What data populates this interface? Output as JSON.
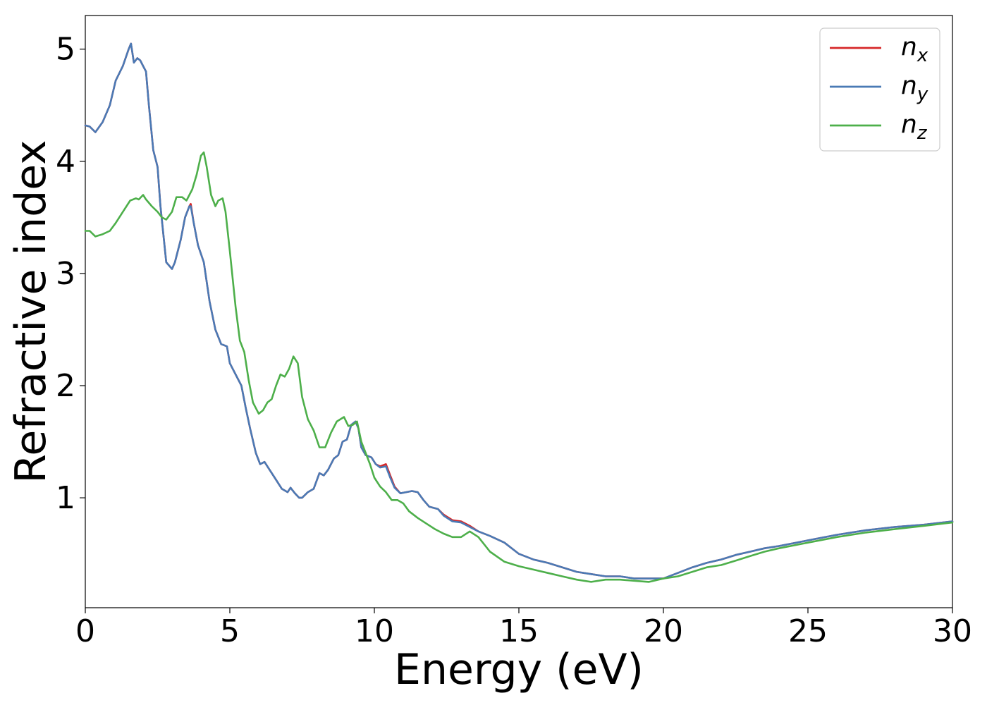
{
  "chart_data": {
    "type": "line",
    "xlabel": "Energy (eV)",
    "ylabel": "Refractive index",
    "xlim": [
      0,
      30
    ],
    "ylim": [
      0.02,
      5.3
    ],
    "xticks": [
      0,
      5,
      10,
      15,
      20,
      25,
      30
    ],
    "yticks": [
      1,
      2,
      3,
      4,
      5
    ],
    "grid": false,
    "legend_position": "top-right",
    "series": [
      {
        "name": "n_x",
        "label_main": "n",
        "label_sub": "x",
        "color": "#d62728",
        "x": [
          0,
          0.15,
          0.35,
          0.6,
          0.85,
          1.05,
          1.3,
          1.5,
          1.58,
          1.68,
          1.8,
          1.9,
          2.0,
          2.1,
          2.2,
          2.35,
          2.5,
          2.6,
          2.8,
          3.0,
          3.1,
          3.3,
          3.45,
          3.6,
          3.65,
          3.75,
          3.9,
          4.1,
          4.3,
          4.5,
          4.7,
          4.9,
          5.0,
          5.2,
          5.4,
          5.55,
          5.7,
          5.9,
          6.05,
          6.2,
          6.35,
          6.55,
          6.8,
          7.0,
          7.1,
          7.25,
          7.4,
          7.5,
          7.7,
          7.9,
          8.1,
          8.25,
          8.4,
          8.6,
          8.75,
          8.9,
          9.05,
          9.2,
          9.35,
          9.45,
          9.55,
          9.7,
          9.9,
          10.05,
          10.2,
          10.4,
          10.55,
          10.7,
          10.9,
          11.1,
          11.3,
          11.5,
          11.7,
          11.9,
          12.2,
          12.4,
          12.7,
          13.0,
          13.3,
          13.6,
          14.0,
          14.5,
          15.0,
          15.5,
          16.0,
          16.5,
          17.0,
          17.5,
          18.0,
          18.5,
          19.0,
          19.5,
          20.0,
          20.5,
          21.0,
          21.5,
          22.0,
          22.5,
          23.0,
          23.5,
          24.0,
          25.0,
          26.0,
          27.0,
          28.0,
          29.0,
          30.0
        ],
        "values": [
          4.32,
          4.31,
          4.26,
          4.35,
          4.5,
          4.72,
          4.85,
          5.0,
          5.05,
          4.88,
          4.92,
          4.9,
          4.85,
          4.8,
          4.5,
          4.1,
          3.95,
          3.6,
          3.1,
          3.04,
          3.1,
          3.3,
          3.5,
          3.6,
          3.62,
          3.45,
          3.25,
          3.1,
          2.75,
          2.5,
          2.37,
          2.35,
          2.2,
          2.1,
          2.0,
          1.8,
          1.62,
          1.4,
          1.3,
          1.32,
          1.26,
          1.18,
          1.08,
          1.05,
          1.09,
          1.04,
          1.0,
          1.0,
          1.05,
          1.08,
          1.22,
          1.2,
          1.25,
          1.35,
          1.38,
          1.5,
          1.52,
          1.65,
          1.68,
          1.62,
          1.45,
          1.38,
          1.36,
          1.3,
          1.28,
          1.3,
          1.2,
          1.1,
          1.04,
          1.05,
          1.06,
          1.05,
          0.98,
          0.92,
          0.9,
          0.85,
          0.8,
          0.79,
          0.75,
          0.7,
          0.66,
          0.6,
          0.5,
          0.45,
          0.42,
          0.38,
          0.34,
          0.32,
          0.3,
          0.3,
          0.28,
          0.28,
          0.28,
          0.33,
          0.38,
          0.42,
          0.45,
          0.49,
          0.52,
          0.55,
          0.57,
          0.62,
          0.67,
          0.71,
          0.74,
          0.76,
          0.79
        ]
      },
      {
        "name": "n_y",
        "label_main": "n",
        "label_sub": "y",
        "color": "#4a7ab5",
        "x": [
          0,
          0.15,
          0.35,
          0.6,
          0.85,
          1.05,
          1.3,
          1.5,
          1.58,
          1.68,
          1.8,
          1.9,
          2.0,
          2.1,
          2.2,
          2.35,
          2.5,
          2.6,
          2.8,
          3.0,
          3.1,
          3.3,
          3.45,
          3.6,
          3.65,
          3.75,
          3.9,
          4.1,
          4.3,
          4.5,
          4.7,
          4.9,
          5.0,
          5.2,
          5.4,
          5.55,
          5.7,
          5.9,
          6.05,
          6.2,
          6.35,
          6.55,
          6.8,
          7.0,
          7.1,
          7.25,
          7.4,
          7.5,
          7.7,
          7.9,
          8.1,
          8.25,
          8.4,
          8.6,
          8.75,
          8.9,
          9.05,
          9.2,
          9.35,
          9.45,
          9.55,
          9.7,
          9.9,
          10.05,
          10.2,
          10.4,
          10.55,
          10.7,
          10.9,
          11.1,
          11.3,
          11.5,
          11.7,
          11.9,
          12.2,
          12.4,
          12.7,
          13.0,
          13.3,
          13.6,
          14.0,
          14.5,
          15.0,
          15.5,
          16.0,
          16.5,
          17.0,
          17.5,
          18.0,
          18.5,
          19.0,
          19.5,
          20.0,
          20.5,
          21.0,
          21.5,
          22.0,
          22.5,
          23.0,
          23.5,
          24.0,
          25.0,
          26.0,
          27.0,
          28.0,
          29.0,
          30.0
        ],
        "values": [
          4.32,
          4.31,
          4.26,
          4.35,
          4.5,
          4.72,
          4.85,
          5.0,
          5.05,
          4.88,
          4.92,
          4.9,
          4.85,
          4.8,
          4.5,
          4.1,
          3.95,
          3.6,
          3.1,
          3.04,
          3.1,
          3.3,
          3.5,
          3.6,
          3.6,
          3.45,
          3.25,
          3.1,
          2.75,
          2.5,
          2.37,
          2.35,
          2.2,
          2.1,
          2.0,
          1.8,
          1.62,
          1.4,
          1.3,
          1.32,
          1.26,
          1.18,
          1.08,
          1.05,
          1.09,
          1.04,
          1.0,
          1.0,
          1.05,
          1.08,
          1.22,
          1.2,
          1.25,
          1.35,
          1.38,
          1.5,
          1.52,
          1.65,
          1.68,
          1.62,
          1.45,
          1.38,
          1.36,
          1.3,
          1.27,
          1.28,
          1.18,
          1.09,
          1.04,
          1.05,
          1.06,
          1.05,
          0.98,
          0.92,
          0.9,
          0.84,
          0.79,
          0.78,
          0.74,
          0.7,
          0.66,
          0.6,
          0.5,
          0.45,
          0.42,
          0.38,
          0.34,
          0.32,
          0.3,
          0.3,
          0.28,
          0.28,
          0.28,
          0.33,
          0.38,
          0.42,
          0.45,
          0.49,
          0.52,
          0.55,
          0.57,
          0.62,
          0.67,
          0.71,
          0.74,
          0.76,
          0.79
        ]
      },
      {
        "name": "n_z",
        "label_main": "n",
        "label_sub": "z",
        "color": "#4daf4a",
        "x": [
          0,
          0.15,
          0.35,
          0.6,
          0.85,
          1.05,
          1.3,
          1.55,
          1.75,
          1.85,
          2.0,
          2.1,
          2.3,
          2.5,
          2.65,
          2.8,
          3.0,
          3.15,
          3.35,
          3.5,
          3.7,
          3.85,
          4.0,
          4.1,
          4.2,
          4.35,
          4.5,
          4.6,
          4.75,
          4.85,
          5.0,
          5.2,
          5.35,
          5.5,
          5.65,
          5.8,
          6.0,
          6.15,
          6.3,
          6.45,
          6.6,
          6.75,
          6.9,
          7.05,
          7.2,
          7.35,
          7.5,
          7.7,
          7.9,
          8.1,
          8.3,
          8.5,
          8.7,
          8.95,
          9.1,
          9.25,
          9.4,
          9.55,
          9.7,
          9.85,
          10.0,
          10.2,
          10.4,
          10.6,
          10.8,
          11.0,
          11.2,
          11.5,
          11.8,
          12.1,
          12.4,
          12.7,
          13.0,
          13.3,
          13.6,
          14.0,
          14.5,
          15.0,
          15.5,
          16.0,
          16.5,
          17.0,
          17.5,
          18.0,
          18.5,
          19.0,
          19.5,
          20.0,
          20.5,
          21.0,
          21.5,
          22.0,
          22.5,
          23.0,
          23.5,
          24.0,
          25.0,
          26.0,
          27.0,
          28.0,
          29.0,
          30.0
        ],
        "values": [
          3.38,
          3.38,
          3.33,
          3.35,
          3.38,
          3.45,
          3.55,
          3.65,
          3.67,
          3.66,
          3.7,
          3.66,
          3.6,
          3.55,
          3.5,
          3.48,
          3.55,
          3.68,
          3.68,
          3.65,
          3.75,
          3.88,
          4.05,
          4.08,
          3.95,
          3.7,
          3.6,
          3.65,
          3.67,
          3.55,
          3.2,
          2.7,
          2.4,
          2.3,
          2.05,
          1.85,
          1.75,
          1.78,
          1.85,
          1.88,
          2.0,
          2.1,
          2.08,
          2.15,
          2.26,
          2.2,
          1.9,
          1.7,
          1.6,
          1.45,
          1.45,
          1.58,
          1.68,
          1.72,
          1.64,
          1.65,
          1.68,
          1.5,
          1.4,
          1.3,
          1.18,
          1.1,
          1.05,
          0.98,
          0.98,
          0.95,
          0.88,
          0.82,
          0.77,
          0.72,
          0.68,
          0.65,
          0.65,
          0.7,
          0.65,
          0.52,
          0.43,
          0.39,
          0.36,
          0.33,
          0.3,
          0.27,
          0.25,
          0.27,
          0.27,
          0.26,
          0.25,
          0.28,
          0.3,
          0.34,
          0.38,
          0.4,
          0.44,
          0.48,
          0.52,
          0.55,
          0.6,
          0.65,
          0.69,
          0.72,
          0.75,
          0.78
        ]
      }
    ]
  }
}
